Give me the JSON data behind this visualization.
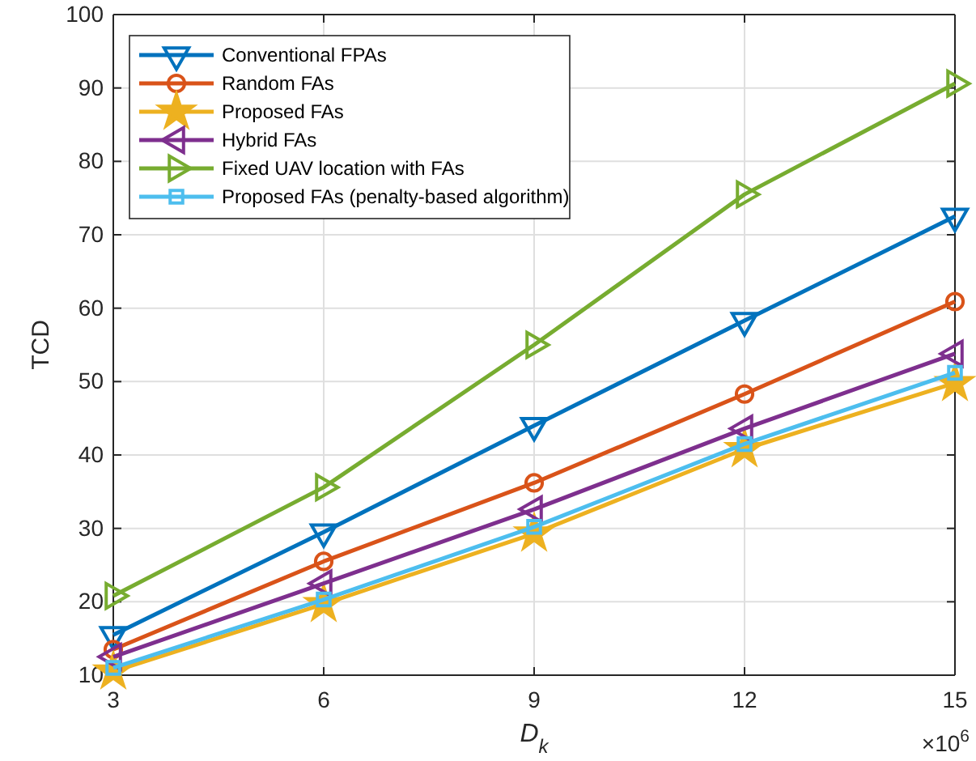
{
  "chart_data": {
    "type": "line",
    "xlabel": "D$_{k}$",
    "ylabel": "TCD",
    "x": [
      3,
      6,
      9,
      12,
      15
    ],
    "xlim": [
      3,
      15
    ],
    "xticks": [
      3,
      6,
      9,
      12,
      15
    ],
    "ylim": [
      10,
      100
    ],
    "yticks": [
      10,
      20,
      30,
      40,
      50,
      60,
      70,
      80,
      90,
      100
    ],
    "grid": true,
    "legend": "top left",
    "line_style": "solid",
    "annotations": [
      "×10$^{6}$"
    ],
    "series": [
      {
        "name": "Conventional FPAs",
        "color": "#0072bd",
        "marker": "triangle-down",
        "values": [
          15.5,
          29.5,
          44,
          58.3,
          72.5
        ]
      },
      {
        "name": "Random FAs",
        "color": "#d95319",
        "marker": "circle",
        "values": [
          13.5,
          25.5,
          36.2,
          48.3,
          60.9
        ]
      },
      {
        "name": "Proposed FAs",
        "color": "#edb120",
        "marker": "star",
        "values": [
          10.5,
          19.7,
          29.3,
          40.8,
          49.8
        ]
      },
      {
        "name": "Hybrid FAs",
        "color": "#7e2f8e",
        "marker": "triangle-left",
        "values": [
          12.5,
          22.5,
          32.6,
          43.6,
          53.8
        ]
      },
      {
        "name": "Fixed UAV location with FAs",
        "color": "#77ac30",
        "marker": "triangle-right",
        "values": [
          20.8,
          35.6,
          55,
          75.5,
          90.6
        ]
      },
      {
        "name": "Proposed FAs (penalty-based algorithm)",
        "color": "#4dbeee",
        "marker": "square",
        "values": [
          11,
          20.3,
          30.2,
          41.5,
          51.2
        ]
      }
    ]
  }
}
